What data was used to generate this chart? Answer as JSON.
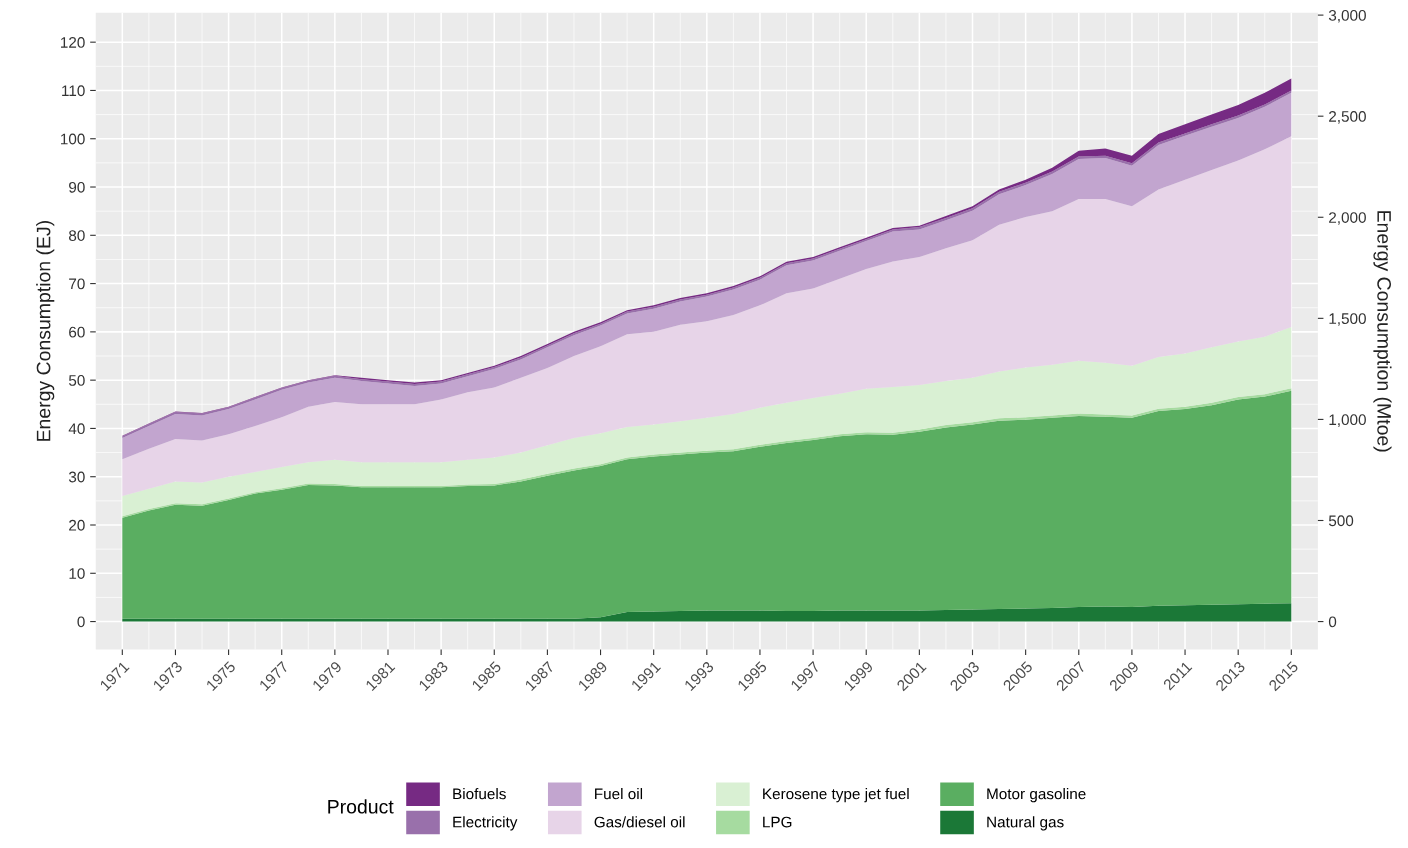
{
  "chart_data": {
    "type": "area",
    "stacked": true,
    "ylabel": "Energy Consumption (EJ)",
    "y2label": "Energy Consumption (Mtoe)",
    "legend_title": "Product",
    "x": [
      1971,
      1972,
      1973,
      1974,
      1975,
      1976,
      1977,
      1978,
      1979,
      1980,
      1981,
      1982,
      1983,
      1984,
      1985,
      1986,
      1987,
      1988,
      1989,
      1990,
      1991,
      1992,
      1993,
      1994,
      1995,
      1996,
      1997,
      1998,
      1999,
      2000,
      2001,
      2002,
      2003,
      2004,
      2005,
      2006,
      2007,
      2008,
      2009,
      2010,
      2011,
      2012,
      2013,
      2014,
      2015
    ],
    "series": [
      {
        "name": "Natural gas",
        "color": "#1b7837",
        "values": [
          0.6,
          0.6,
          0.6,
          0.6,
          0.6,
          0.6,
          0.6,
          0.6,
          0.6,
          0.6,
          0.6,
          0.6,
          0.6,
          0.6,
          0.6,
          0.6,
          0.6,
          0.6,
          0.9,
          2.0,
          2.1,
          2.2,
          2.3,
          2.3,
          2.3,
          2.2,
          2.2,
          2.3,
          2.3,
          2.3,
          2.3,
          2.4,
          2.5,
          2.6,
          2.7,
          2.8,
          3.0,
          3.1,
          3.0,
          3.3,
          3.4,
          3.5,
          3.6,
          3.7,
          3.8
        ]
      },
      {
        "name": "Motor gasoline",
        "color": "#5aae61",
        "values": [
          20.9,
          22.4,
          23.6,
          23.4,
          24.6,
          25.9,
          26.7,
          27.7,
          27.6,
          27.2,
          27.2,
          27.2,
          27.2,
          27.5,
          27.6,
          28.4,
          29.6,
          30.7,
          31.3,
          31.6,
          32.1,
          32.4,
          32.7,
          33.0,
          33.9,
          34.8,
          35.4,
          36.1,
          36.5,
          36.4,
          37.0,
          37.8,
          38.3,
          39.0,
          39.1,
          39.4,
          39.6,
          39.3,
          39.2,
          40.3,
          40.6,
          41.3,
          42.4,
          42.9,
          44.0
        ]
      },
      {
        "name": "LPG",
        "color": "#a6dba0",
        "values": [
          0.3,
          0.3,
          0.3,
          0.3,
          0.3,
          0.3,
          0.3,
          0.3,
          0.3,
          0.3,
          0.3,
          0.3,
          0.3,
          0.3,
          0.3,
          0.4,
          0.4,
          0.4,
          0.4,
          0.4,
          0.4,
          0.4,
          0.4,
          0.4,
          0.4,
          0.4,
          0.4,
          0.4,
          0.4,
          0.4,
          0.5,
          0.5,
          0.5,
          0.5,
          0.5,
          0.5,
          0.5,
          0.5,
          0.5,
          0.5,
          0.5,
          0.5,
          0.5,
          0.5,
          0.5
        ]
      },
      {
        "name": "Kerosene type jet fuel",
        "color": "#d9f0d3",
        "values": [
          4.2,
          4.2,
          4.5,
          4.5,
          4.5,
          4.2,
          4.4,
          4.4,
          5.0,
          4.9,
          4.9,
          4.9,
          4.9,
          5.1,
          5.5,
          5.6,
          5.9,
          6.3,
          6.4,
          6.3,
          6.2,
          6.5,
          6.8,
          7.3,
          7.7,
          7.9,
          8.3,
          8.4,
          9.0,
          9.5,
          9.2,
          9.1,
          9.2,
          9.7,
          10.3,
          10.5,
          10.9,
          10.7,
          10.3,
          10.7,
          11.0,
          11.5,
          11.5,
          11.9,
          12.7
        ]
      },
      {
        "name": "Gas/diesel oil",
        "color": "#e7d4e8",
        "values": [
          7.6,
          8.3,
          8.8,
          8.7,
          8.8,
          9.5,
          10.3,
          11.5,
          12.0,
          12.0,
          12.0,
          12.0,
          13.0,
          14.0,
          14.5,
          15.5,
          16.0,
          17.0,
          18.0,
          19.2,
          19.2,
          20.0,
          20.0,
          20.5,
          21.2,
          22.7,
          22.7,
          23.8,
          24.8,
          26.0,
          26.5,
          27.5,
          28.5,
          30.4,
          31.2,
          31.8,
          33.5,
          33.9,
          33.0,
          34.7,
          36.0,
          36.7,
          37.5,
          38.8,
          39.5
        ]
      },
      {
        "name": "Fuel oil",
        "color": "#c2a5cf",
        "values": [
          4.4,
          4.7,
          5.2,
          5.2,
          5.2,
          5.5,
          5.7,
          5.0,
          5.0,
          4.8,
          4.3,
          3.8,
          3.3,
          3.3,
          3.8,
          3.8,
          4.3,
          4.3,
          4.3,
          4.3,
          4.8,
          4.8,
          5.1,
          5.3,
          5.3,
          5.8,
          5.8,
          5.8,
          5.8,
          6.2,
          5.7,
          5.8,
          6.1,
          6.3,
          6.6,
          7.7,
          8.3,
          8.5,
          8.4,
          9.2,
          9.1,
          9.0,
          8.8,
          8.8,
          9.0
        ]
      },
      {
        "name": "Electricity",
        "color": "#9970ab",
        "values": [
          0.4,
          0.4,
          0.4,
          0.4,
          0.4,
          0.4,
          0.4,
          0.4,
          0.4,
          0.4,
          0.4,
          0.4,
          0.4,
          0.4,
          0.4,
          0.4,
          0.4,
          0.4,
          0.4,
          0.4,
          0.4,
          0.4,
          0.4,
          0.4,
          0.4,
          0.4,
          0.4,
          0.4,
          0.4,
          0.4,
          0.5,
          0.5,
          0.5,
          0.5,
          0.5,
          0.5,
          0.5,
          0.5,
          0.5,
          0.5,
          0.5,
          0.5,
          0.5,
          0.5,
          0.5
        ]
      },
      {
        "name": "Biofuels",
        "color": "#762a83",
        "values": [
          0.1,
          0.1,
          0.1,
          0.1,
          0.1,
          0.1,
          0.1,
          0.1,
          0.1,
          0.3,
          0.3,
          0.3,
          0.3,
          0.3,
          0.3,
          0.3,
          0.3,
          0.3,
          0.3,
          0.3,
          0.3,
          0.3,
          0.3,
          0.3,
          0.3,
          0.3,
          0.3,
          0.3,
          0.3,
          0.3,
          0.3,
          0.4,
          0.4,
          0.5,
          0.6,
          0.8,
          1.2,
          1.5,
          1.6,
          1.8,
          1.9,
          2.0,
          2.2,
          2.4,
          2.5
        ]
      }
    ],
    "xlim": [
      1970,
      2016
    ],
    "xticks": [
      1971,
      1973,
      1975,
      1977,
      1979,
      1981,
      1983,
      1985,
      1987,
      1989,
      1991,
      1993,
      1995,
      1997,
      1999,
      2001,
      2003,
      2005,
      2007,
      2009,
      2011,
      2013,
      2015
    ],
    "ylim": [
      -5.8,
      126.1
    ],
    "yticks": [
      0,
      10,
      20,
      30,
      40,
      50,
      60,
      70,
      80,
      90,
      100,
      110,
      120
    ],
    "y2lim": [
      -138.5,
      3011.8
    ],
    "y2ticks": [
      0,
      500,
      {
        "value": 1000,
        "label": "1,000"
      },
      {
        "value": 1500,
        "label": "1,500"
      },
      {
        "value": 2000,
        "label": "2,000"
      },
      {
        "value": 2500,
        "label": "2,500"
      },
      {
        "value": 3000,
        "label": "3,000"
      }
    ],
    "grid": true,
    "legend": "bottom"
  }
}
